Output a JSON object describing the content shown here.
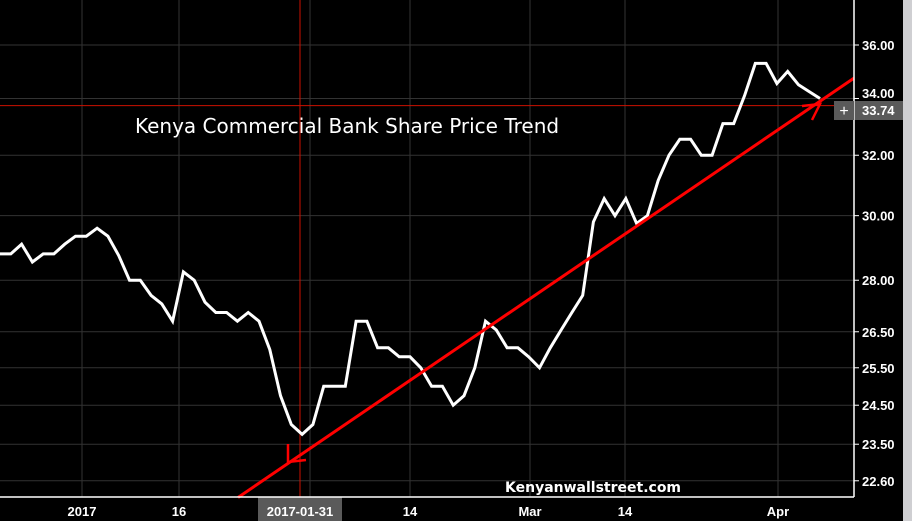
{
  "chart_data": {
    "type": "line",
    "title": "Kenya Commercial Bank Share Price Trend",
    "watermark": "Kenyanwallstreet.com",
    "y_scale": "log",
    "ylim": [
      22.2,
      37.0
    ],
    "y_ticks": [
      "36.00",
      "34.00",
      "32.00",
      "30.00",
      "28.00",
      "26.50",
      "25.50",
      "24.50",
      "23.50",
      "22.60"
    ],
    "x_ticks": [
      "2017",
      "16",
      "2017-01-31",
      "14",
      "Mar",
      "14",
      "Apr"
    ],
    "x_highlight_label": "2017-01-31",
    "grid": true,
    "line_color": "#ffffff",
    "series": [
      {
        "values": [
          28.8,
          28.8,
          29.1,
          28.55,
          28.8,
          28.8,
          29.1,
          29.35,
          29.35,
          29.6,
          29.35,
          28.75,
          28.0,
          28.0,
          27.55,
          27.3,
          26.8,
          28.25,
          28.0,
          27.35,
          27.05,
          27.05,
          26.8,
          27.05,
          26.8,
          26.0,
          24.75,
          24.0,
          23.75,
          24.0,
          25.0,
          25.0,
          25.0,
          26.8,
          26.8,
          26.05,
          26.05,
          25.8,
          25.8,
          25.5,
          25.0,
          25.0,
          24.5,
          24.75,
          25.5,
          26.8,
          26.55,
          26.05,
          26.05,
          25.8,
          25.5,
          26.05,
          26.55,
          27.05,
          27.55,
          29.8,
          30.55,
          30.0,
          30.55,
          29.75,
          30.0,
          31.15,
          32.0,
          32.55,
          32.55,
          32.0,
          32.0,
          33.1,
          33.1,
          34.1,
          35.3,
          35.3,
          34.55,
          35.0,
          34.5,
          34.25,
          34.0
        ]
      }
    ],
    "trendline": {
      "color": "#ff0000",
      "start_price": 22.2,
      "end_price": 34.75,
      "arrows": "both"
    },
    "current_price": {
      "label": "33.74",
      "value": 33.74,
      "color": "#cc1100"
    }
  }
}
